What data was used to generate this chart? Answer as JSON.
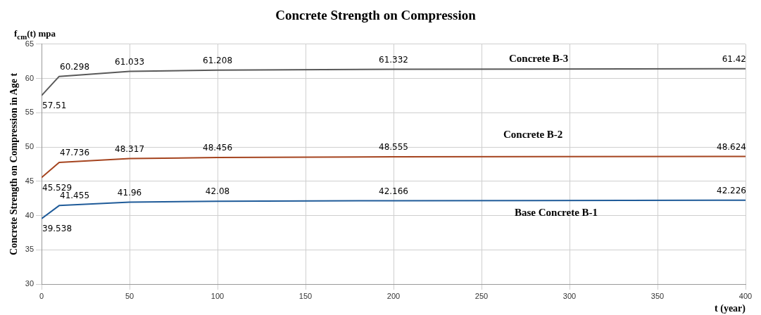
{
  "chart_data": {
    "type": "line",
    "title": "Concrete Strength on Compression",
    "xlabel": "t (year)",
    "ylabel": "Concrete Strength on Compression in Age t",
    "annotations": [
      "f$_{cm}$(t) mpa"
    ],
    "x": [
      0,
      10,
      50,
      100,
      200,
      400
    ],
    "series": [
      {
        "name": "Concrete B-3",
        "color": "#595959",
        "values": [
          57.51,
          60.298,
          61.033,
          61.208,
          61.332,
          61.42
        ]
      },
      {
        "name": "Concrete B-2",
        "color": "#a5441f",
        "values": [
          45.529,
          47.736,
          48.317,
          48.456,
          48.555,
          48.624
        ]
      },
      {
        "name": "Base Concrete B-1",
        "color": "#1f5b99",
        "values": [
          39.538,
          41.455,
          41.96,
          42.08,
          42.166,
          42.226
        ]
      }
    ],
    "xlim": [
      0,
      400
    ],
    "xticks": [
      0,
      50,
      100,
      150,
      200,
      250,
      300,
      350,
      400
    ],
    "ylim": [
      30,
      65
    ],
    "yticks": [
      30,
      35,
      40,
      45,
      50,
      55,
      60,
      65
    ],
    "grid": true,
    "legend": false,
    "marker": "none",
    "line_style": "solid",
    "data_labels": true
  }
}
